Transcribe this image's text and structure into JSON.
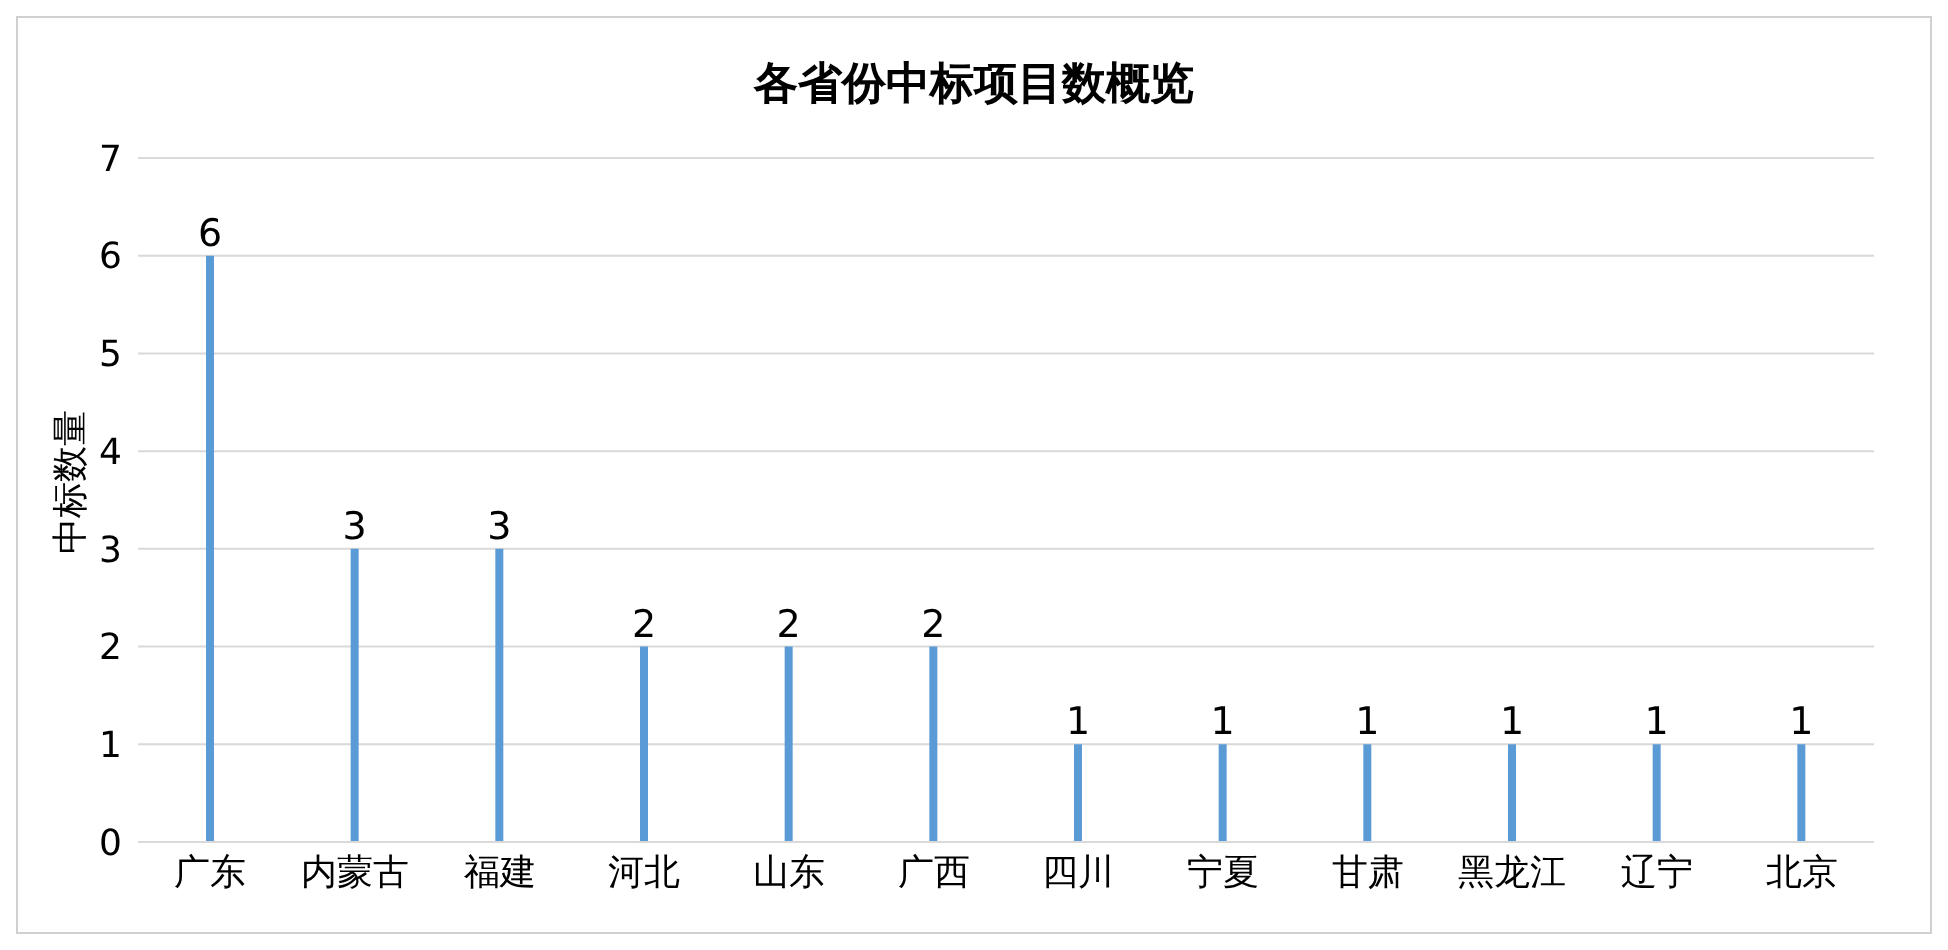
{
  "chart_data": {
    "type": "bar",
    "title": "各省份中标项目数概览",
    "ylabel": "中标数量",
    "categories": [
      "广东",
      "内蒙古",
      "福建",
      "河北",
      "山东",
      "广西",
      "四川",
      "宁夏",
      "甘肃",
      "黑龙江",
      "辽宁",
      "北京"
    ],
    "values": [
      6,
      3,
      3,
      2,
      2,
      2,
      1,
      1,
      1,
      1,
      1,
      1
    ],
    "color": "#5b9bd5",
    "ylim": [
      0,
      7
    ],
    "yticks": [
      0,
      1,
      2,
      3,
      4,
      5,
      6,
      7
    ],
    "grid": "y",
    "data_labels": true,
    "legend": false
  }
}
